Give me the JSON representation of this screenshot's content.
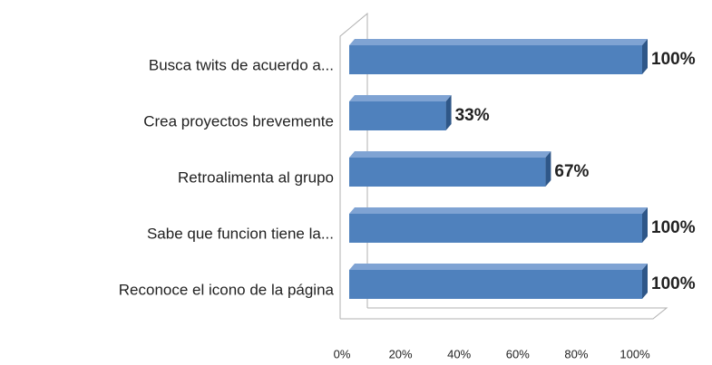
{
  "chart_data": {
    "type": "bar",
    "orientation": "horizontal",
    "categories": [
      "Busca twits de acuerdo a...",
      "Crea proyectos brevemente",
      "Retroalimenta al grupo",
      "Sabe que funcion tiene la...",
      "Reconoce el icono de la página"
    ],
    "values": [
      100,
      33,
      67,
      100,
      100
    ],
    "value_labels": [
      "100%",
      "33%",
      "67%",
      "100%",
      "100%"
    ],
    "color": "#4f81bd",
    "xlim": [
      0,
      100
    ],
    "xticks": [
      {
        "value": 0,
        "label": "0%"
      },
      {
        "value": 20,
        "label": "20%"
      },
      {
        "value": 40,
        "label": "40%"
      },
      {
        "value": 60,
        "label": "60%"
      },
      {
        "value": 80,
        "label": "80%"
      },
      {
        "value": 100,
        "label": "100%"
      }
    ]
  }
}
